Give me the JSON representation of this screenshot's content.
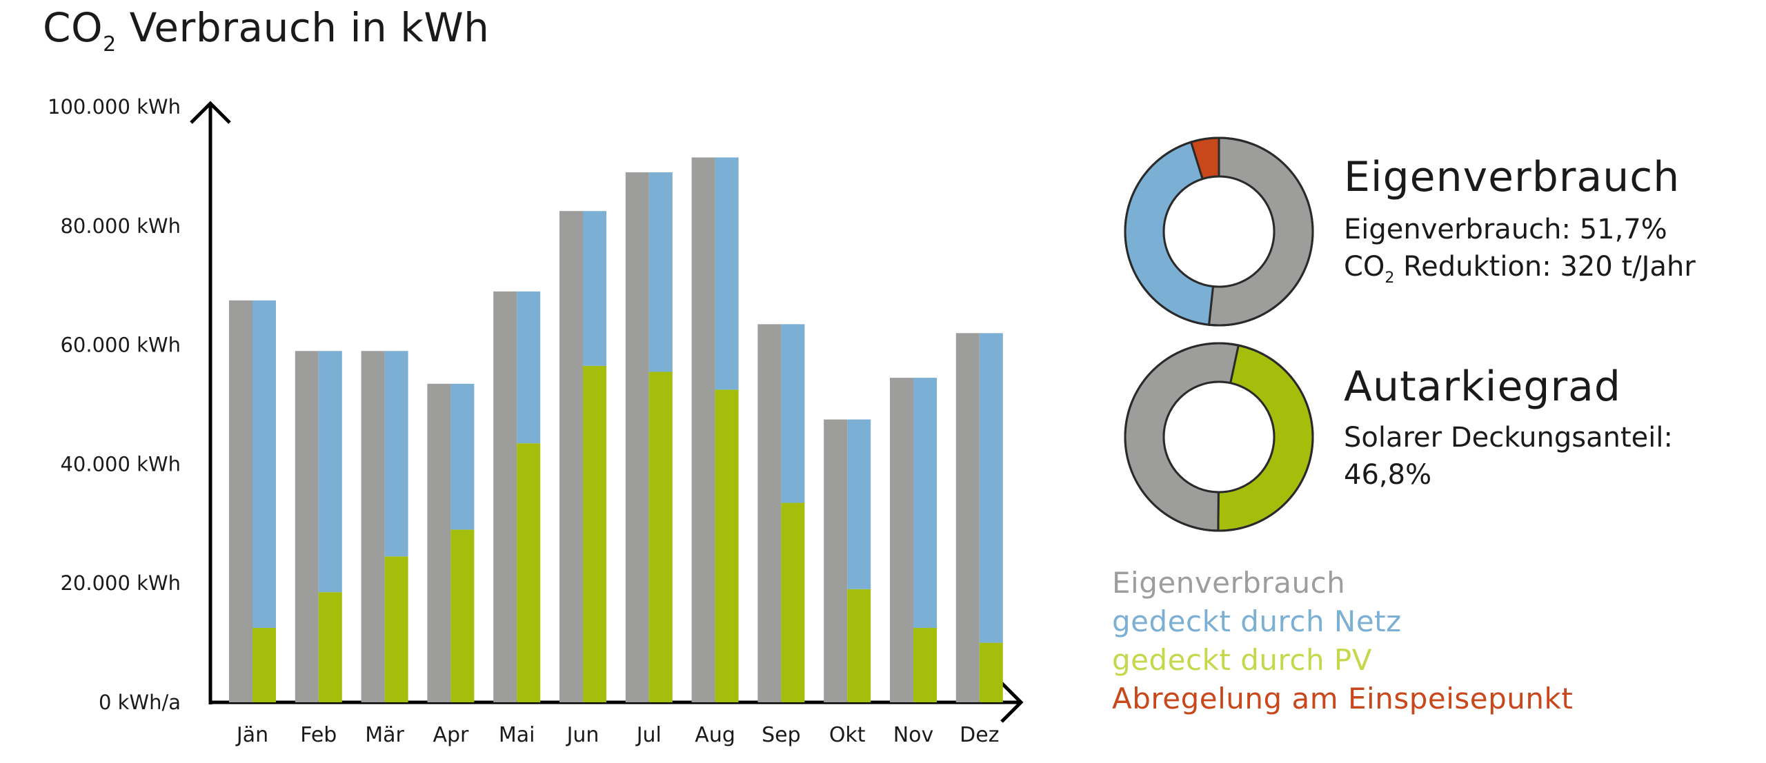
{
  "title": {
    "main": "CO",
    "sub": "2",
    "rest": " Verbrauch in kWh"
  },
  "colors": {
    "eigenverbrauch": "#9d9d9c",
    "netz": "#7bafd4",
    "pv": "#a4be0b",
    "abregelung": "#c8481b",
    "legend_pv": "#c5d74a",
    "axis": "#000000"
  },
  "chart_data": [
    {
      "type": "bar",
      "title": "CO2 Verbrauch in kWh",
      "xlabel": "",
      "ylabel": "",
      "ylim": [
        0,
        100000
      ],
      "y_ticks": [
        "0 kWh/a",
        "20.000 kWh",
        "40.000 kWh",
        "60.000 kWh",
        "80.000 kWh",
        "100.000 kWh"
      ],
      "y_tick_values": [
        0,
        20000,
        40000,
        60000,
        80000,
        100000
      ],
      "grid": false,
      "categories": [
        "Jän",
        "Feb",
        "Mär",
        "Apr",
        "Mai",
        "Jun",
        "Jul",
        "Aug",
        "Sep",
        "Okt",
        "Nov",
        "Dez"
      ],
      "series": [
        {
          "name": "Eigenverbrauch",
          "values": [
            67500,
            59000,
            59000,
            53500,
            69000,
            82500,
            89000,
            91500,
            63500,
            47500,
            54500,
            62000
          ]
        },
        {
          "name": "gedeckt durch Netz",
          "stack": "netz_pv",
          "values": [
            55000,
            40500,
            34500,
            24500,
            25500,
            26000,
            33500,
            39000,
            30000,
            28500,
            42000,
            52000
          ]
        },
        {
          "name": "gedeckt durch PV",
          "stack": "netz_pv",
          "values": [
            12500,
            18500,
            24500,
            29000,
            43500,
            56500,
            55500,
            52500,
            33500,
            19000,
            12500,
            10000
          ]
        }
      ]
    },
    {
      "type": "pie",
      "title": "Eigenverbrauch",
      "labels": [
        "Eigenverbrauch",
        "gedeckt durch Netz",
        "Abregelung am Einspeisepunkt"
      ],
      "values": [
        51.7,
        43.5,
        4.8
      ]
    },
    {
      "type": "pie",
      "title": "Autarkiegrad",
      "labels": [
        "gedeckt durch PV",
        "Eigenverbrauch"
      ],
      "values": [
        46.8,
        53.2
      ]
    }
  ],
  "panel1": {
    "title": "Eigenverbrauch",
    "line1": "Eigenverbrauch: 51,7%",
    "line2_main": "CO",
    "line2_sub": "2",
    "line2_rest": " Reduktion: 320 t/Jahr"
  },
  "panel2": {
    "title": "Autarkiegrad",
    "line1": "Solarer Deckungsanteil:",
    "line2": "46,8%"
  },
  "legend": [
    {
      "label": "Eigenverbrauch",
      "color": "#9d9d9c"
    },
    {
      "label": "gedeckt durch Netz",
      "color": "#7bafd4"
    },
    {
      "label": "gedeckt durch PV",
      "color": "#c5d74a"
    },
    {
      "label": "Abregelung am Einspeisepunkt",
      "color": "#c8481b"
    }
  ]
}
